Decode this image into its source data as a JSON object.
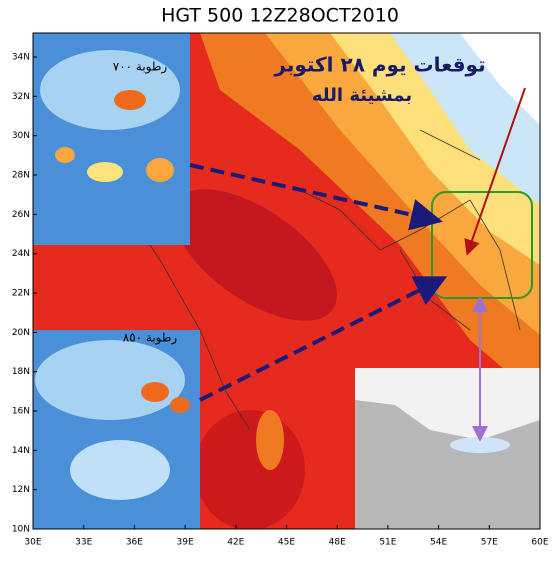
{
  "map": {
    "title": "HGT 500 12Z28OCT2010",
    "lat_labels": [
      "10N",
      "12N",
      "14N",
      "16N",
      "18N",
      "20N",
      "22N",
      "24N",
      "26N",
      "28N",
      "30N",
      "32N",
      "34N"
    ],
    "lon_labels": [
      "30E",
      "33E",
      "36E",
      "39E",
      "42E",
      "45E",
      "48E",
      "51E",
      "54E",
      "57E",
      "60E"
    ],
    "headline": "توقعات يوم ٢٨ اكتوبر",
    "subline": "بمشيئة الله",
    "inset_700": "رطوبة ٧٠٠",
    "inset_850": "رطوبة ٨٥٠"
  }
}
